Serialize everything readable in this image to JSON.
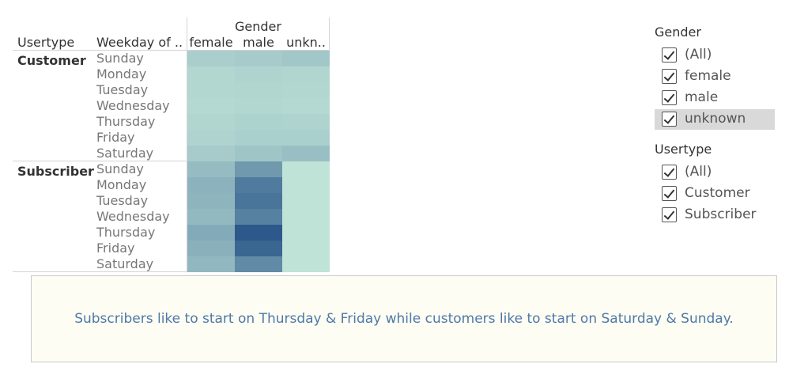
{
  "crosstab": {
    "column_group_title": "Gender",
    "row_header_titles": [
      "Usertype",
      "Weekday of .."
    ],
    "column_headers": [
      "female",
      "male",
      "unkn.."
    ]
  },
  "filters": {
    "gender": {
      "title": "Gender",
      "items": [
        {
          "label": "(All)",
          "checked": true,
          "highlighted": false
        },
        {
          "label": "female",
          "checked": true,
          "highlighted": false
        },
        {
          "label": "male",
          "checked": true,
          "highlighted": false
        },
        {
          "label": "unknown",
          "checked": true,
          "highlighted": true
        }
      ]
    },
    "usertype": {
      "title": "Usertype",
      "items": [
        {
          "label": "(All)",
          "checked": true
        },
        {
          "label": "Customer",
          "checked": true
        },
        {
          "label": "Subscriber",
          "checked": true
        }
      ]
    }
  },
  "caption": "Subscribers like to start on Thursday & Friday while customers like to start on Saturday & Sunday.",
  "chart_data": {
    "type": "heatmap",
    "color_scale": {
      "low": "#c2e6d9",
      "high": "#245187"
    },
    "columns": [
      "female",
      "male",
      "unknown"
    ],
    "row_groups": [
      {
        "usertype": "Customer",
        "rows": [
          {
            "weekday": "Sunday",
            "values": [
              0.16,
              0.18,
              0.21
            ]
          },
          {
            "weekday": "Monday",
            "values": [
              0.1,
              0.12,
              0.11
            ]
          },
          {
            "weekday": "Tuesday",
            "values": [
              0.1,
              0.11,
              0.1
            ]
          },
          {
            "weekday": "Wednesday",
            "values": [
              0.09,
              0.1,
              0.09
            ]
          },
          {
            "weekday": "Thursday",
            "values": [
              0.11,
              0.13,
              0.12
            ]
          },
          {
            "weekday": "Friday",
            "values": [
              0.12,
              0.15,
              0.15
            ]
          },
          {
            "weekday": "Saturday",
            "values": [
              0.18,
              0.22,
              0.26
            ]
          }
        ]
      },
      {
        "usertype": "Subscriber",
        "rows": [
          {
            "weekday": "Sunday",
            "values": [
              0.28,
              0.52,
              0.02
            ]
          },
          {
            "weekday": "Monday",
            "values": [
              0.34,
              0.72,
              0.02
            ]
          },
          {
            "weekday": "Tuesday",
            "values": [
              0.33,
              0.76,
              0.02
            ]
          },
          {
            "weekday": "Wednesday",
            "values": [
              0.3,
              0.68,
              0.02
            ]
          },
          {
            "weekday": "Thursday",
            "values": [
              0.4,
              0.95,
              0.02
            ]
          },
          {
            "weekday": "Friday",
            "values": [
              0.36,
              0.86,
              0.02
            ]
          },
          {
            "weekday": "Saturday",
            "values": [
              0.31,
              0.62,
              0.02
            ]
          }
        ]
      }
    ]
  }
}
